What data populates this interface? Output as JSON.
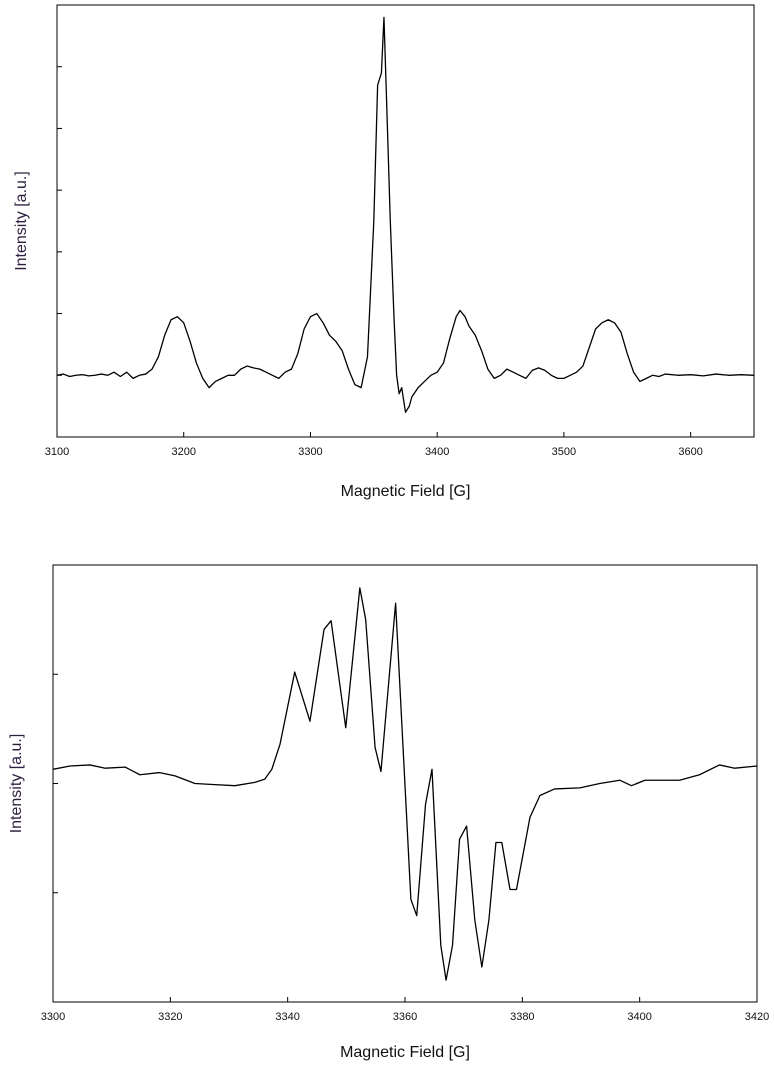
{
  "chart_data": [
    {
      "type": "line",
      "x_label": "Magnetic Field [G]",
      "y_label": "Intensity [a.u.]",
      "color": "#000000",
      "xlim": [
        3100,
        3650
      ],
      "xticks": [
        3100,
        3200,
        3300,
        3400,
        3500,
        3600
      ],
      "ylim": [
        -1,
        6
      ],
      "yticks": [
        0,
        1,
        2,
        3,
        4,
        5
      ],
      "x": [
        3100,
        3105,
        3110,
        3115,
        3120,
        3125,
        3130,
        3135,
        3140,
        3145,
        3150,
        3155,
        3160,
        3165,
        3170,
        3175,
        3180,
        3185,
        3190,
        3195,
        3200,
        3205,
        3210,
        3215,
        3220,
        3225,
        3230,
        3235,
        3240,
        3245,
        3250,
        3255,
        3260,
        3265,
        3270,
        3275,
        3280,
        3285,
        3290,
        3295,
        3300,
        3305,
        3310,
        3315,
        3320,
        3325,
        3330,
        3335,
        3340,
        3345,
        3350,
        3353,
        3356,
        3358,
        3360,
        3363,
        3366,
        3368,
        3370,
        3372,
        3375,
        3378,
        3380,
        3385,
        3390,
        3395,
        3400,
        3405,
        3410,
        3415,
        3418,
        3422,
        3425,
        3430,
        3435,
        3440,
        3445,
        3450,
        3455,
        3460,
        3465,
        3470,
        3475,
        3480,
        3485,
        3490,
        3495,
        3500,
        3505,
        3510,
        3515,
        3520,
        3525,
        3530,
        3535,
        3540,
        3545,
        3550,
        3555,
        3560,
        3565,
        3570,
        3575,
        3580,
        3590,
        3600,
        3610,
        3620,
        3630,
        3640,
        3650
      ],
      "values": [
        0.0,
        0.02,
        -0.02,
        0.0,
        0.01,
        -0.01,
        0.0,
        0.02,
        0.0,
        0.05,
        -0.02,
        0.05,
        -0.05,
        0.0,
        0.02,
        0.1,
        0.3,
        0.65,
        0.9,
        0.95,
        0.85,
        0.55,
        0.2,
        -0.05,
        -0.2,
        -0.1,
        -0.05,
        0.0,
        0.0,
        0.1,
        0.15,
        0.12,
        0.1,
        0.05,
        0.0,
        -0.05,
        0.05,
        0.1,
        0.35,
        0.75,
        0.95,
        1.0,
        0.85,
        0.65,
        0.55,
        0.4,
        0.1,
        -0.15,
        -0.2,
        0.3,
        2.5,
        4.7,
        4.9,
        5.8,
        4.5,
        2.5,
        0.9,
        0.0,
        -0.3,
        -0.2,
        -0.6,
        -0.5,
        -0.35,
        -0.2,
        -0.1,
        0.0,
        0.05,
        0.2,
        0.6,
        0.95,
        1.05,
        0.95,
        0.8,
        0.65,
        0.4,
        0.1,
        -0.05,
        0.0,
        0.1,
        0.05,
        0.0,
        -0.05,
        0.08,
        0.12,
        0.08,
        0.0,
        -0.05,
        -0.05,
        0.0,
        0.05,
        0.15,
        0.45,
        0.75,
        0.85,
        0.9,
        0.85,
        0.7,
        0.35,
        0.05,
        -0.1,
        -0.05,
        0.0,
        -0.02,
        0.02,
        0.0,
        0.01,
        -0.01,
        0.02,
        0.0,
        0.01,
        0.0
      ]
    },
    {
      "type": "line",
      "x_label": "Magnetic Field [G]",
      "y_label": "Intensity [a.u.]",
      "color": "#000000",
      "xlim": [
        3300,
        3420
      ],
      "xticks": [
        3300,
        3320,
        3340,
        3360,
        3380,
        3400,
        3420
      ],
      "ylim": [
        -2,
        2
      ],
      "yticks": [
        -1,
        0,
        1
      ],
      "x": [
        3300,
        3302.9,
        3306.3,
        3308.9,
        3312.3,
        3314.8,
        3318.2,
        3320.8,
        3324.2,
        3327.6,
        3331.0,
        3334.4,
        3336.1,
        3337.3,
        3338.7,
        3341.2,
        3343.8,
        3346.2,
        3347.4,
        3349.9,
        3352.3,
        3353.3,
        3354.9,
        3355.9,
        3358.4,
        3361.0,
        3362.0,
        3363.5,
        3364.6,
        3366.1,
        3367.0,
        3368.1,
        3369.3,
        3370.5,
        3371.9,
        3373.1,
        3374.3,
        3375.5,
        3376.5,
        3377.9,
        3379.0,
        3381.3,
        3383.0,
        3385.5,
        3389.8,
        3393.2,
        3396.6,
        3398.6,
        3400.9,
        3406.8,
        3410.2,
        3413.6,
        3416.2,
        3420
      ],
      "values": [
        0.13,
        0.16,
        0.17,
        0.14,
        0.15,
        0.08,
        0.1,
        0.07,
        0.0,
        -0.01,
        -0.02,
        0.01,
        0.04,
        0.13,
        0.36,
        1.02,
        0.57,
        1.41,
        1.49,
        0.51,
        1.79,
        1.5,
        0.33,
        0.11,
        1.65,
        -1.06,
        -1.21,
        -0.19,
        0.13,
        -1.48,
        -1.8,
        -1.48,
        -0.51,
        -0.39,
        -1.25,
        -1.68,
        -1.25,
        -0.54,
        -0.54,
        -0.97,
        -0.97,
        -0.31,
        -0.11,
        -0.05,
        -0.04,
        0.0,
        0.03,
        -0.02,
        0.03,
        0.03,
        0.08,
        0.17,
        0.14,
        0.16
      ]
    }
  ]
}
